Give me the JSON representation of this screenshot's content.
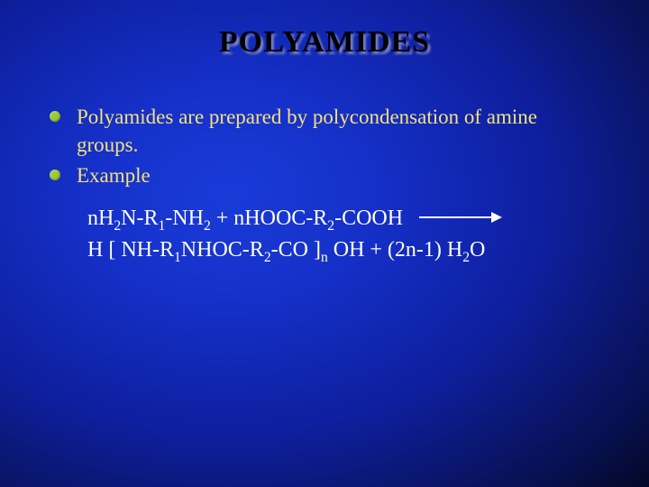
{
  "title": "POLYAMIDES",
  "bullets": [
    "Polyamides are prepared by polycondensation of amine groups.",
    "Example"
  ],
  "equation": {
    "line1": {
      "a": "nH",
      "a_sub": "2",
      "b": "N-R",
      "b_sub": "1",
      "c": "-NH",
      "c_sub": "2",
      "plus": " + ",
      "d": "nHOOC-R",
      "d_sub": "2",
      "e": "-COOH"
    },
    "line2": {
      "a": "H  [  NH-R",
      "a_sub": "1",
      "b": "NHOC-R",
      "b_sub": "2",
      "c": "-CO  ]",
      "c_sub": "n",
      "d": " OH + (2n-1) H",
      "d_sub": "2",
      "e": "O"
    }
  },
  "style": {
    "title_color": "#000000",
    "title_shadow": "rgba(200,200,200,0.55)",
    "bullet_text_color": "#f5e27a",
    "bullet_dot_color": "#9acd32",
    "equation_color": "#ffffff",
    "background_gradient": [
      "#1a3bd8",
      "#1530c8",
      "#0e1f9e",
      "#07104f",
      "#030621"
    ],
    "title_fontsize": 34,
    "bullet_fontsize": 23,
    "equation_fontsize": 24
  }
}
